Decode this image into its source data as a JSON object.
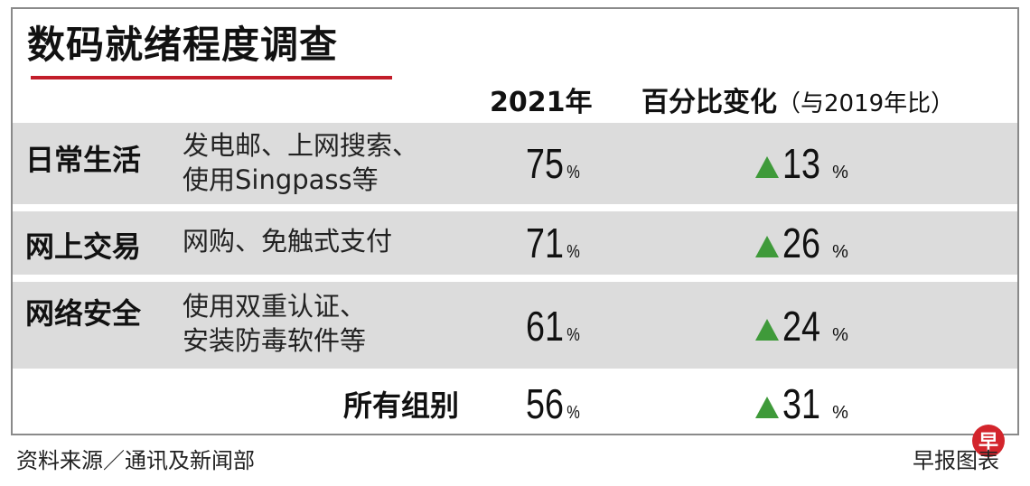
{
  "title": "数码就绪程度调查",
  "header": {
    "col_year": "2021年",
    "col_change": "百分比变化",
    "col_change_note": "（与2019年比）"
  },
  "chart_data": {
    "type": "table",
    "title": "数码就绪程度调查",
    "columns": [
      "2021年",
      "百分比变化（与2019年比）"
    ],
    "unit": "%",
    "rows": [
      {
        "category": "日常生活",
        "desc_lines": [
          "发电邮、上网搜索、",
          "使用Singpass等"
        ],
        "value": "75",
        "change": "13",
        "direction": "up"
      },
      {
        "category": "网上交易",
        "desc_lines": [
          "网购、免触式支付"
        ],
        "value": "71",
        "change": "26",
        "direction": "up"
      },
      {
        "category": "网络安全",
        "desc_lines": [
          "使用双重认证、",
          "安装防毒软件等"
        ],
        "value": "61",
        "change": "24",
        "direction": "up"
      },
      {
        "category": "所有组别",
        "desc_lines": [],
        "value": "56",
        "change": "31",
        "direction": "up"
      }
    ],
    "up_color": "#3f9a3a"
  },
  "footer": {
    "source": "资料来源／通讯及新闻部",
    "credit": "早报图表",
    "logo_char": "早"
  },
  "colors": {
    "accent_rule": "#c21d2a",
    "row_shade": "#dcdcdc",
    "logo_bg": "#d3252c"
  }
}
